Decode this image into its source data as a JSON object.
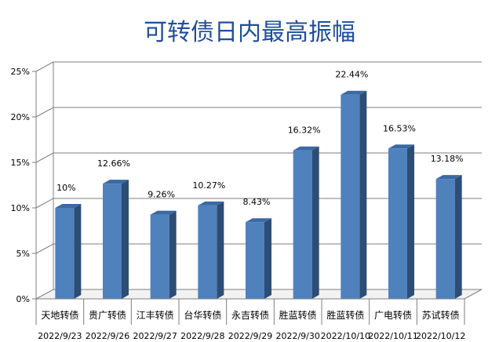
{
  "colors": {
    "title": "#1f4e9e",
    "bar_front": "#4f81bd",
    "bar_side": "#2c4d75",
    "bar_top": "#3a6aa3",
    "grid": "#7f7f7f",
    "axis": "#7f7f7f"
  },
  "chart_data": {
    "type": "bar",
    "title": "可转债日内最高振幅",
    "xlabel": "",
    "ylabel": "",
    "ylim": [
      0,
      25
    ],
    "yticks": [
      "0%",
      "5%",
      "10%",
      "15%",
      "20%",
      "25%"
    ],
    "grid": true,
    "categories": [
      "天地转债",
      "贵广转债",
      "江丰转债",
      "台华转债",
      "永吉转债",
      "胜蓝转债",
      "胜蓝转债",
      "广电转债",
      "苏试转债"
    ],
    "dates": [
      "2022/9/23",
      "2022/9/26",
      "2022/9/27",
      "2022/9/28",
      "2022/9/29",
      "2022/9/30",
      "2022/10/10",
      "2022/10/11",
      "2022/10/12"
    ],
    "values": [
      10,
      12.66,
      9.26,
      10.27,
      8.43,
      16.32,
      22.44,
      16.53,
      13.18
    ],
    "data_labels": [
      "10%",
      "12.66%",
      "9.26%",
      "10.27%",
      "8.43%",
      "16.32%",
      "22.44%",
      "16.53%",
      "13.18%"
    ]
  }
}
